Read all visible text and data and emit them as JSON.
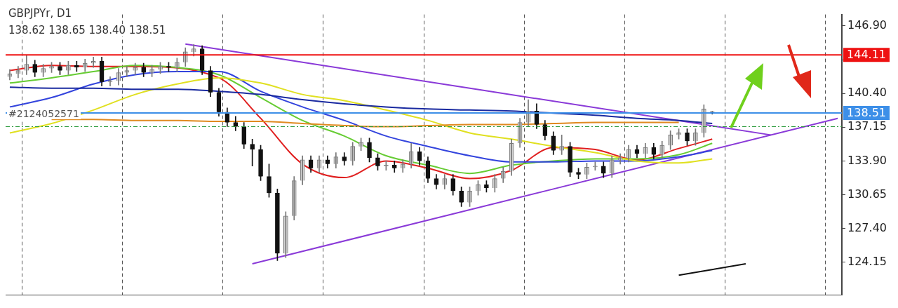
{
  "chart_data": {
    "type": "candlestick",
    "title": "GBPJPYr, D1",
    "subtitle": "138.62 138.65 138.40 138.51",
    "annotations": [
      "#2124052571"
    ],
    "categories": [
      null,
      null,
      null,
      null,
      null,
      null,
      null,
      null,
      null,
      null,
      null,
      null,
      null,
      null,
      null,
      null,
      null,
      null,
      null,
      null,
      null,
      null,
      null,
      null,
      null,
      null,
      null,
      null,
      null,
      null,
      null,
      null,
      null,
      null,
      null,
      null,
      null,
      null,
      null,
      null,
      null,
      null,
      null,
      null,
      null,
      null,
      null,
      null,
      null,
      null,
      null,
      null,
      null,
      null,
      null,
      null,
      null,
      null,
      null,
      null,
      null,
      null,
      null,
      null,
      null,
      null,
      null,
      null,
      null,
      null,
      null,
      null,
      null,
      null,
      null,
      null,
      null,
      null,
      null,
      null,
      null,
      null,
      null,
      null,
      null,
      null,
      null,
      null,
      null,
      null,
      null,
      null,
      null,
      null,
      null,
      null,
      null,
      null,
      null,
      null
    ],
    "ohlc": [
      [
        142.0,
        142.7,
        141.7,
        142.3
      ],
      [
        142.3,
        143.0,
        141.9,
        142.6
      ],
      [
        142.6,
        144.1,
        142.2,
        143.2
      ],
      [
        143.2,
        143.6,
        142.0,
        142.4
      ],
      [
        142.4,
        143.2,
        142.0,
        142.8
      ],
      [
        142.8,
        143.4,
        142.4,
        143.0
      ],
      [
        143.0,
        143.4,
        142.2,
        142.6
      ],
      [
        142.6,
        143.5,
        142.2,
        143.1
      ],
      [
        143.1,
        143.5,
        142.5,
        142.9
      ],
      [
        142.9,
        143.7,
        142.5,
        143.3
      ],
      [
        143.3,
        143.9,
        142.9,
        143.5
      ],
      [
        143.5,
        143.9,
        141.1,
        141.5
      ],
      [
        141.5,
        142.0,
        141.1,
        141.6
      ],
      [
        141.6,
        142.8,
        141.2,
        142.4
      ],
      [
        142.4,
        143.0,
        142.0,
        142.6
      ],
      [
        142.6,
        143.3,
        142.2,
        142.9
      ],
      [
        142.9,
        143.3,
        142.0,
        142.4
      ],
      [
        142.4,
        143.1,
        142.0,
        142.7
      ],
      [
        142.7,
        143.4,
        142.3,
        143.0
      ],
      [
        143.0,
        143.4,
        142.5,
        142.9
      ],
      [
        142.9,
        143.8,
        142.5,
        143.4
      ],
      [
        143.4,
        144.8,
        143.0,
        144.4
      ],
      [
        144.4,
        145.1,
        144.0,
        144.7
      ],
      [
        144.7,
        145.0,
        142.2,
        142.6
      ],
      [
        142.6,
        143.0,
        140.1,
        140.5
      ],
      [
        140.5,
        140.9,
        138.2,
        138.6
      ],
      [
        138.6,
        139.0,
        137.2,
        137.6
      ],
      [
        137.6,
        138.2,
        136.8,
        137.2
      ],
      [
        137.2,
        137.6,
        135.1,
        135.5
      ],
      [
        135.5,
        136.0,
        133.4,
        135.0
      ],
      [
        135.0,
        135.4,
        132.0,
        132.4
      ],
      [
        132.4,
        133.6,
        130.4,
        130.8
      ],
      [
        130.8,
        131.2,
        124.3,
        125.0
      ],
      [
        125.0,
        129.0,
        124.6,
        128.6
      ],
      [
        128.6,
        132.4,
        128.2,
        132.0
      ],
      [
        132.0,
        134.4,
        131.6,
        134.0
      ],
      [
        134.0,
        134.4,
        132.8,
        133.2
      ],
      [
        133.2,
        134.4,
        132.8,
        134.0
      ],
      [
        134.0,
        134.4,
        133.2,
        133.6
      ],
      [
        133.6,
        134.7,
        133.2,
        134.3
      ],
      [
        134.3,
        134.7,
        133.5,
        133.9
      ],
      [
        133.9,
        135.7,
        133.5,
        135.3
      ],
      [
        135.3,
        136.1,
        134.9,
        135.7
      ],
      [
        135.7,
        136.1,
        133.8,
        134.2
      ],
      [
        134.2,
        134.6,
        133.0,
        133.4
      ],
      [
        133.4,
        133.9,
        133.0,
        133.5
      ],
      [
        133.5,
        133.9,
        132.8,
        133.2
      ],
      [
        133.2,
        134.0,
        132.8,
        133.6
      ],
      [
        133.6,
        135.6,
        133.2,
        134.8
      ],
      [
        134.8,
        135.2,
        133.5,
        133.9
      ],
      [
        133.9,
        134.3,
        131.8,
        132.2
      ],
      [
        132.2,
        132.6,
        131.2,
        131.6
      ],
      [
        131.6,
        132.6,
        131.2,
        132.2
      ],
      [
        132.2,
        132.6,
        130.6,
        131.0
      ],
      [
        131.0,
        131.4,
        129.5,
        129.9
      ],
      [
        129.9,
        131.4,
        129.5,
        131.0
      ],
      [
        131.0,
        132.0,
        130.6,
        131.6
      ],
      [
        131.6,
        132.0,
        130.9,
        131.3
      ],
      [
        131.3,
        132.6,
        130.9,
        132.2
      ],
      [
        132.2,
        133.3,
        131.8,
        132.9
      ],
      [
        132.9,
        136.0,
        132.5,
        135.6
      ],
      [
        135.6,
        138.0,
        135.2,
        137.6
      ],
      [
        137.6,
        139.8,
        137.2,
        138.7
      ],
      [
        138.7,
        139.4,
        137.0,
        137.4
      ],
      [
        137.4,
        137.8,
        135.9,
        136.3
      ],
      [
        136.3,
        136.7,
        134.5,
        134.9
      ],
      [
        134.9,
        136.4,
        134.5,
        135.3
      ],
      [
        135.3,
        135.7,
        132.4,
        132.8
      ],
      [
        132.8,
        133.2,
        132.2,
        132.6
      ],
      [
        132.6,
        133.7,
        132.2,
        133.3
      ],
      [
        133.3,
        133.8,
        133.0,
        133.4
      ],
      [
        133.4,
        133.8,
        132.3,
        132.7
      ],
      [
        132.7,
        134.4,
        132.3,
        134.0
      ],
      [
        134.0,
        134.6,
        133.6,
        134.2
      ],
      [
        134.2,
        135.4,
        133.8,
        135.0
      ],
      [
        135.0,
        135.4,
        134.2,
        134.6
      ],
      [
        134.6,
        135.6,
        134.2,
        135.2
      ],
      [
        135.2,
        135.6,
        134.1,
        134.5
      ],
      [
        134.5,
        135.8,
        134.1,
        135.4
      ],
      [
        135.4,
        136.8,
        135.0,
        136.4
      ],
      [
        136.4,
        137.0,
        136.0,
        136.6
      ],
      [
        136.6,
        137.0,
        135.4,
        135.8
      ],
      [
        135.8,
        137.0,
        135.4,
        136.6
      ],
      [
        136.6,
        139.3,
        136.2,
        138.9
      ],
      [
        138.62,
        138.65,
        138.4,
        138.51
      ],
      null,
      null,
      null,
      null,
      null,
      null,
      null,
      null,
      null,
      null,
      null,
      null,
      null,
      null,
      null
    ],
    "series": [
      {
        "type": "line",
        "color": "#1a2aa0",
        "values": [
          141.0,
          null,
          null,
          null,
          null,
          140.9,
          null,
          null,
          null,
          null,
          140.9,
          null,
          null,
          null,
          null,
          140.8,
          null,
          null,
          null,
          null,
          140.8,
          null,
          null,
          null,
          null,
          140.6,
          null,
          null,
          null,
          null,
          140.3,
          null,
          null,
          null,
          null,
          139.8,
          null,
          null,
          null,
          null,
          139.4,
          null,
          null,
          null,
          null,
          139.1,
          null,
          null,
          null,
          null,
          138.9,
          null,
          null,
          null,
          null,
          138.8,
          null,
          null,
          null,
          null,
          138.7,
          null,
          null,
          null,
          null,
          138.5,
          null,
          null,
          null,
          null,
          138.3,
          null,
          null,
          null,
          null,
          138.0,
          null,
          null,
          null,
          null,
          137.8,
          null,
          null,
          null,
          137.5,
          null,
          null,
          null,
          null,
          null,
          null,
          null,
          null,
          null,
          null,
          null,
          null,
          null,
          null,
          null
        ]
      },
      {
        "type": "line",
        "color": "#e08a20",
        "values": [
          null,
          null,
          null,
          null,
          null,
          137.9,
          null,
          null,
          null,
          null,
          137.9,
          null,
          null,
          null,
          null,
          137.8,
          null,
          null,
          null,
          null,
          137.8,
          null,
          null,
          null,
          null,
          137.7,
          null,
          null,
          null,
          null,
          137.7,
          null,
          null,
          null,
          null,
          137.5,
          null,
          null,
          null,
          null,
          137.3,
          null,
          null,
          null,
          null,
          137.2,
          null,
          null,
          null,
          null,
          137.3,
          null,
          null,
          null,
          null,
          137.4,
          null,
          null,
          null,
          null,
          137.4,
          null,
          null,
          null,
          null,
          137.5,
          null,
          null,
          null,
          null,
          137.6,
          null,
          null,
          null,
          null,
          137.6,
          null,
          null,
          null,
          null,
          137.6,
          null,
          null,
          null,
          null,
          null,
          null,
          null,
          null,
          null,
          null,
          null,
          null,
          null,
          null,
          null,
          null,
          null,
          null,
          null
        ]
      },
      {
        "type": "line",
        "color": "#e0e020",
        "values": [
          136.6,
          null,
          null,
          null,
          null,
          137.5,
          null,
          null,
          null,
          null,
          138.8,
          null,
          null,
          null,
          null,
          140.3,
          null,
          null,
          null,
          null,
          141.3,
          null,
          null,
          null,
          null,
          141.9,
          null,
          null,
          null,
          null,
          141.4,
          null,
          null,
          null,
          null,
          140.3,
          null,
          null,
          null,
          null,
          139.7,
          null,
          null,
          null,
          null,
          138.8,
          null,
          null,
          null,
          null,
          137.8,
          null,
          null,
          null,
          null,
          136.6,
          null,
          null,
          null,
          null,
          136.0,
          null,
          null,
          null,
          null,
          135.3,
          null,
          null,
          null,
          null,
          134.7,
          null,
          null,
          null,
          null,
          133.9,
          null,
          null,
          null,
          null,
          133.7,
          null,
          null,
          null,
          134.1,
          null,
          null,
          null,
          null,
          null,
          null,
          null,
          null,
          null,
          null,
          null,
          null,
          null,
          null,
          null
        ]
      },
      {
        "type": "line",
        "color": "#3344dd",
        "values": [
          139.1,
          null,
          null,
          null,
          null,
          140.0,
          null,
          null,
          null,
          null,
          141.3,
          null,
          null,
          null,
          null,
          142.2,
          null,
          null,
          null,
          null,
          142.5,
          null,
          null,
          null,
          null,
          142.5,
          null,
          null,
          null,
          null,
          140.6,
          null,
          null,
          null,
          null,
          139.1,
          null,
          null,
          null,
          null,
          137.8,
          null,
          null,
          null,
          null,
          136.3,
          null,
          null,
          null,
          null,
          135.3,
          null,
          null,
          null,
          null,
          134.4,
          null,
          null,
          null,
          null,
          133.8,
          null,
          null,
          null,
          null,
          133.8,
          null,
          null,
          null,
          null,
          133.9,
          null,
          null,
          null,
          null,
          133.9,
          null,
          null,
          null,
          null,
          134.3,
          null,
          null,
          null,
          134.9,
          null,
          null,
          null,
          null,
          null,
          null,
          null,
          null,
          null,
          null,
          null,
          null,
          null,
          null,
          null
        ]
      },
      {
        "type": "line",
        "color": "#66cc33",
        "values": [
          141.4,
          null,
          null,
          null,
          null,
          141.9,
          null,
          null,
          null,
          null,
          142.5,
          null,
          null,
          null,
          null,
          143.1,
          null,
          null,
          null,
          null,
          142.9,
          null,
          null,
          null,
          null,
          142.2,
          null,
          null,
          null,
          null,
          140.0,
          null,
          null,
          null,
          null,
          137.8,
          null,
          null,
          null,
          null,
          136.3,
          null,
          null,
          null,
          null,
          134.4,
          null,
          null,
          null,
          null,
          133.5,
          null,
          null,
          null,
          null,
          132.7,
          null,
          null,
          null,
          null,
          133.5,
          null,
          null,
          null,
          null,
          133.9,
          null,
          null,
          null,
          null,
          134.1,
          null,
          null,
          null,
          null,
          134.1,
          null,
          null,
          null,
          null,
          134.5,
          null,
          null,
          null,
          135.6,
          null,
          null,
          null,
          null,
          null,
          null,
          null,
          null,
          null,
          null,
          null,
          null,
          null,
          null,
          null
        ]
      },
      {
        "type": "line",
        "color": "#e02020",
        "values": [
          142.6,
          null,
          null,
          null,
          null,
          143.1,
          null,
          null,
          null,
          null,
          143.0,
          null,
          null,
          null,
          null,
          143.0,
          null,
          null,
          null,
          null,
          null,
          null,
          null,
          null,
          null,
          141.9,
          null,
          null,
          null,
          null,
          138.0,
          null,
          null,
          null,
          null,
          133.6,
          null,
          null,
          null,
          null,
          132.3,
          null,
          null,
          null,
          null,
          133.9,
          null,
          null,
          null,
          null,
          133.2,
          null,
          null,
          null,
          null,
          132.2,
          null,
          null,
          null,
          null,
          133.0,
          null,
          null,
          null,
          null,
          135.2,
          null,
          null,
          null,
          null,
          135.0,
          null,
          null,
          null,
          null,
          134.0,
          null,
          null,
          null,
          null,
          135.1,
          null,
          null,
          null,
          136.0,
          null,
          null,
          null,
          null,
          null,
          null,
          null,
          null,
          null,
          null,
          null,
          null,
          null,
          null,
          null
        ]
      },
      {
        "type": "line",
        "color": "#8a3ad8",
        "values": [
          null,
          null,
          null,
          null,
          null,
          null,
          null,
          null,
          null,
          null,
          null,
          null,
          null,
          null,
          null,
          null,
          null,
          null,
          null,
          null,
          null,
          145.15,
          null,
          null,
          null,
          null,
          null,
          null,
          null,
          null,
          null,
          null,
          null,
          null,
          null,
          null,
          null,
          null,
          null,
          null,
          null,
          null,
          null,
          null,
          null,
          null,
          null,
          null,
          null,
          null,
          null,
          null,
          null,
          null,
          null,
          null,
          null,
          null,
          null,
          null,
          null,
          null,
          null,
          null,
          null,
          null,
          null,
          null,
          null,
          null,
          null,
          null,
          null,
          null,
          null,
          null,
          null,
          null,
          null,
          null,
          null,
          null,
          null,
          null,
          null,
          null,
          null,
          null,
          null,
          null,
          null,
          136.4,
          null,
          null,
          null,
          null,
          null,
          null,
          null,
          null
        ]
      },
      {
        "type": "line",
        "color": "#8a3ad8",
        "values": [
          null,
          null,
          null,
          null,
          null,
          null,
          null,
          null,
          null,
          null,
          null,
          null,
          null,
          null,
          null,
          null,
          null,
          null,
          null,
          null,
          null,
          null,
          null,
          null,
          null,
          null,
          null,
          null,
          null,
          124.0,
          null,
          null,
          null,
          null,
          null,
          null,
          null,
          null,
          null,
          null,
          null,
          null,
          null,
          null,
          null,
          null,
          null,
          null,
          null,
          null,
          null,
          null,
          null,
          null,
          null,
          null,
          null,
          null,
          null,
          null,
          null,
          null,
          null,
          null,
          null,
          null,
          null,
          null,
          null,
          null,
          null,
          null,
          null,
          null,
          null,
          null,
          null,
          null,
          null,
          null,
          null,
          null,
          null,
          null,
          null,
          null,
          null,
          null,
          null,
          null,
          null,
          null,
          null,
          null,
          null,
          null,
          null,
          null,
          null,
          138.0
        ]
      },
      {
        "type": "line",
        "color": "#111111",
        "values": [
          null,
          null,
          null,
          null,
          null,
          null,
          null,
          null,
          null,
          null,
          null,
          null,
          null,
          null,
          null,
          null,
          null,
          null,
          null,
          null,
          null,
          null,
          null,
          null,
          null,
          null,
          null,
          null,
          null,
          null,
          null,
          null,
          null,
          null,
          null,
          null,
          null,
          null,
          null,
          null,
          null,
          null,
          null,
          null,
          null,
          null,
          null,
          null,
          null,
          null,
          null,
          null,
          null,
          null,
          null,
          null,
          null,
          null,
          null,
          null,
          null,
          null,
          null,
          null,
          null,
          null,
          null,
          null,
          null,
          null,
          null,
          null,
          null,
          null,
          null,
          null,
          null,
          null,
          null,
          null,
          122.9,
          null,
          null,
          null,
          null,
          null,
          null,
          null,
          124.0,
          null,
          null,
          null,
          null,
          null,
          null,
          null,
          null,
          null,
          null,
          null
        ]
      }
    ],
    "ylim": [
      121.0,
      148.0
    ],
    "yticks": [
      124.15,
      {
        "value": 127.4,
        "label": "127.40"
      },
      130.65,
      {
        "value": 133.9,
        "label": "133.90"
      },
      137.15,
      {
        "value": 140.4,
        "label": "140.40"
      },
      {
        "value": 143.65,
        "label": null
      },
      {
        "value": 146.9,
        "label": "146.90"
      }
    ],
    "ref_lines": [
      {
        "axis": "y",
        "value": 144.11,
        "label": "144.11",
        "color": "#ee1111"
      },
      {
        "axis": "y",
        "value": 138.51,
        "label": "138.51",
        "color": "#3d8fe8"
      },
      {
        "axis": "y",
        "value": 137.2,
        "color": "#2a9a3a",
        "line_style": "dashed"
      }
    ],
    "grid": "x",
    "tick_labels": "y",
    "marker": "none"
  }
}
